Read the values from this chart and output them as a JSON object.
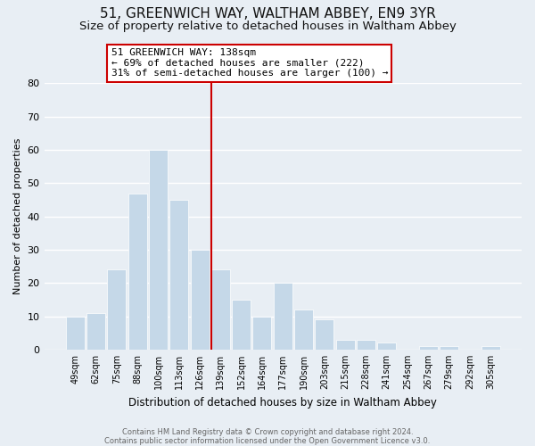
{
  "title1": "51, GREENWICH WAY, WALTHAM ABBEY, EN9 3YR",
  "title2": "Size of property relative to detached houses in Waltham Abbey",
  "xlabel": "Distribution of detached houses by size in Waltham Abbey",
  "ylabel": "Number of detached properties",
  "bar_labels": [
    "49sqm",
    "62sqm",
    "75sqm",
    "88sqm",
    "100sqm",
    "113sqm",
    "126sqm",
    "139sqm",
    "152sqm",
    "164sqm",
    "177sqm",
    "190sqm",
    "203sqm",
    "215sqm",
    "228sqm",
    "241sqm",
    "254sqm",
    "267sqm",
    "279sqm",
    "292sqm",
    "305sqm"
  ],
  "bar_values": [
    10,
    11,
    24,
    47,
    60,
    45,
    30,
    24,
    15,
    10,
    20,
    12,
    9,
    3,
    3,
    2,
    0,
    1,
    1,
    0,
    1
  ],
  "bar_color": "#c5d8e8",
  "bar_edge_color": "#ffffff",
  "vline_color": "#cc0000",
  "annotation_title": "51 GREENWICH WAY: 138sqm",
  "annotation_line1": "← 69% of detached houses are smaller (222)",
  "annotation_line2": "31% of semi-detached houses are larger (100) →",
  "annotation_box_edge": "#cc0000",
  "ylim": [
    0,
    80
  ],
  "yticks": [
    0,
    10,
    20,
    30,
    40,
    50,
    60,
    70,
    80
  ],
  "footer1": "Contains HM Land Registry data © Crown copyright and database right 2024.",
  "footer2": "Contains public sector information licensed under the Open Government Licence v3.0.",
  "bg_color": "#e8eef4",
  "plot_bg_color": "#e8eef4",
  "grid_color": "#ffffff",
  "title1_fontsize": 11,
  "title2_fontsize": 9.5
}
